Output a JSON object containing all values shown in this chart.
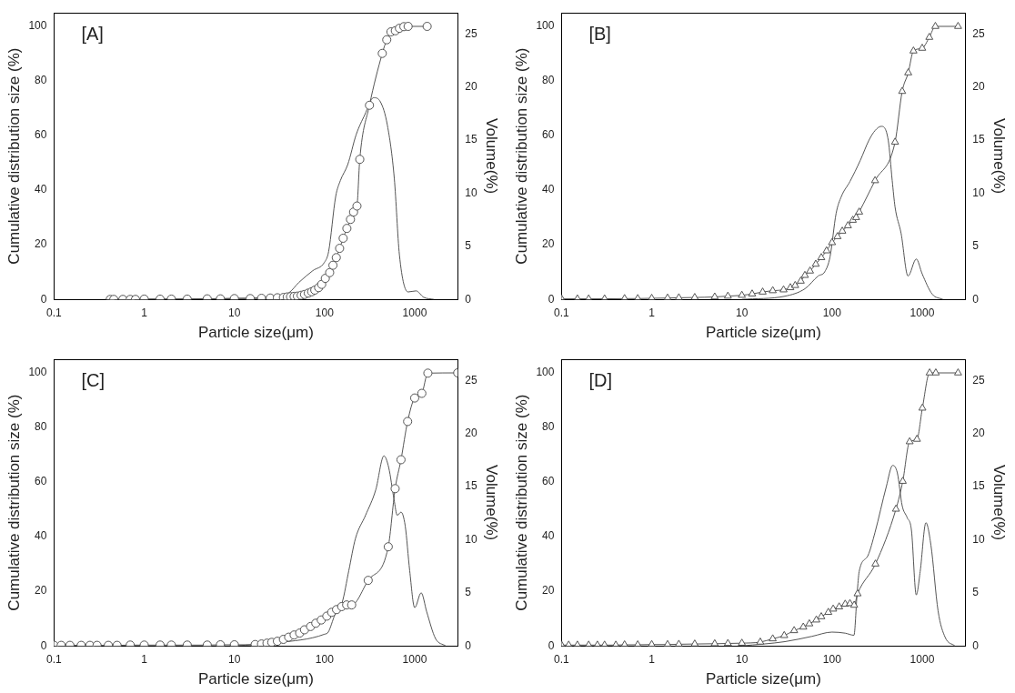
{
  "chart_data": [
    {
      "type": "line",
      "xlabel": "Particle size(μm)",
      "ylabel": "Cumulative distribution size (%)",
      "y2label": "Volume(%)",
      "annotations": [
        "[A]"
      ],
      "log": "x",
      "grid": false,
      "legend": false,
      "xlim": [
        0.1,
        3000
      ],
      "xticks": [
        0.1,
        1,
        10,
        100,
        1000
      ],
      "ylim": [
        0,
        105
      ],
      "yticks": [
        0,
        20,
        40,
        60,
        80,
        100
      ],
      "y2lim": [
        0,
        27
      ],
      "y2ticks": [
        0,
        5,
        10,
        15,
        20,
        25
      ],
      "series": [
        {
          "type": "line",
          "marker": "circle",
          "color": "#555555",
          "x": [
            0.42,
            0.46,
            0.58,
            0.7,
            0.8,
            1,
            1.5,
            2,
            3,
            5,
            7,
            10,
            15,
            20,
            25,
            30,
            35,
            38.6,
            42,
            46,
            50,
            55,
            60,
            66,
            72,
            78,
            86,
            93,
            102,
            114,
            124,
            135,
            147,
            161,
            177,
            194,
            210,
            229,
            246,
            315,
            437,
            490,
            545,
            610,
            677,
            759,
            845,
            1374
          ],
          "values": [
            0,
            0,
            0,
            0,
            0,
            0.1,
            0.1,
            0.1,
            0.1,
            0.2,
            0.2,
            0.3,
            0.3,
            0.4,
            0.5,
            0.6,
            0.7,
            0.9,
            1,
            1.1,
            1.2,
            1.5,
            1.8,
            2.3,
            2.8,
            3.4,
            4.3,
            5.5,
            7.7,
            9.8,
            12.5,
            15.3,
            18.7,
            22.4,
            26,
            29.3,
            32,
            34.2,
            51.3,
            71.1,
            90.1,
            95.1,
            98,
            98.4,
            99.3,
            99.9,
            100,
            100
          ]
        },
        {
          "type": "line",
          "axis": "y2",
          "marker": "none",
          "color": "#555555",
          "x": [
            0.42,
            10,
            30,
            40,
            52,
            74,
            100,
            111,
            133,
            150,
            181,
            224,
            280,
            350,
            417,
            498,
            594,
            677,
            845,
            1035,
            1258,
            1630
          ],
          "values": [
            0,
            0.1,
            0.3,
            0.6,
            1.6,
            2.7,
            3.5,
            4.5,
            9.7,
            11.2,
            12.7,
            15.5,
            17.4,
            19,
            18.6,
            16.4,
            11.4,
            4.2,
            0.7,
            0.8,
            0.2,
            0
          ]
        }
      ]
    },
    {
      "type": "line",
      "xlabel": "Particle size(μm)",
      "ylabel": "Cumulative distribution size (%)",
      "y2label": "Volume(%)",
      "annotations": [
        "[B]"
      ],
      "log": "x",
      "grid": false,
      "legend": false,
      "xlim": [
        0.1,
        3000
      ],
      "xticks": [
        0.1,
        1,
        10,
        100,
        1000
      ],
      "ylim": [
        0,
        105
      ],
      "yticks": [
        0,
        20,
        40,
        60,
        80,
        100
      ],
      "y2lim": [
        0,
        27
      ],
      "y2ticks": [
        0,
        5,
        10,
        15,
        20,
        25
      ],
      "series": [
        {
          "type": "line",
          "marker": "triangle",
          "color": "#555555",
          "x": [
            0.1,
            0.15,
            0.2,
            0.3,
            0.5,
            0.7,
            1,
            1.5,
            2,
            3,
            5,
            7,
            10,
            13,
            17,
            22,
            29,
            34.5,
            39,
            45,
            50,
            57,
            66,
            76,
            87,
            100,
            115,
            130,
            150,
            170,
            185,
            200,
            300,
            500,
            600,
            700,
            800,
            1000,
            1200,
            1400,
            2500
          ],
          "values": [
            0.2,
            0.2,
            0.2,
            0.2,
            0.3,
            0.3,
            0.4,
            0.5,
            0.6,
            0.7,
            0.9,
            1.2,
            1.5,
            2,
            2.7,
            3.2,
            3.5,
            4.3,
            5.1,
            6.7,
            8.8,
            10.4,
            12.9,
            15.3,
            17.8,
            20.8,
            23,
            25,
            27,
            29,
            30,
            32,
            43.5,
            57.6,
            76.2,
            83,
            91,
            92,
            96,
            100,
            100
          ]
        },
        {
          "type": "line",
          "axis": "y2",
          "marker": "none",
          "color": "#555555",
          "x": [
            10,
            30,
            50,
            70,
            83,
            95,
            111,
            127,
            158,
            206,
            257,
            300,
            352,
            420,
            465,
            500,
            584,
            696,
            860,
            1000,
            1290,
            1700
          ],
          "values": [
            0,
            0.3,
            1,
            2.2,
            2.6,
            4,
            8.1,
            9.7,
            11.1,
            13.1,
            15,
            15.9,
            16.3,
            15,
            11.2,
            8.7,
            6.2,
            2.2,
            3.8,
            2.4,
            0.5,
            0
          ]
        }
      ]
    },
    {
      "type": "line",
      "xlabel": "Particle size(μm)",
      "ylabel": "Cumulative distribution size (%)",
      "y2label": "Volume(%)",
      "annotations": [
        "[C]"
      ],
      "log": "x",
      "grid": false,
      "legend": false,
      "xlim": [
        0.1,
        3000
      ],
      "xticks": [
        0.1,
        1,
        10,
        100,
        1000
      ],
      "ylim": [
        0,
        105
      ],
      "yticks": [
        0,
        20,
        40,
        60,
        80,
        100
      ],
      "y2lim": [
        0,
        27
      ],
      "y2ticks": [
        0,
        5,
        10,
        15,
        20,
        25
      ],
      "series": [
        {
          "type": "line",
          "marker": "circle",
          "color": "#555555",
          "x": [
            0.1,
            0.12,
            0.15,
            0.2,
            0.25,
            0.3,
            0.4,
            0.5,
            0.7,
            1,
            1.5,
            2,
            3,
            5,
            7,
            10,
            17,
            20,
            23,
            26,
            30,
            35,
            40,
            46,
            53,
            60,
            70,
            80,
            92,
            106,
            120,
            136,
            155,
            176,
            200,
            305,
            509,
            607,
            705,
            835,
            1000,
            1200,
            1400,
            3000
          ],
          "values": [
            0.2,
            0.2,
            0.2,
            0.2,
            0.2,
            0.2,
            0.2,
            0.2,
            0.3,
            0.3,
            0.3,
            0.3,
            0.3,
            0.3,
            0.4,
            0.4,
            0.5,
            0.7,
            1,
            1.3,
            1.7,
            2.4,
            3.2,
            4,
            4.7,
            5.9,
            7.1,
            8.3,
            9.5,
            10.9,
            12.3,
            13.3,
            14.4,
            15,
            15,
            24,
            36.3,
            57.6,
            68.2,
            82.2,
            90.8,
            92.5,
            99.9,
            100
          ]
        },
        {
          "type": "line",
          "axis": "y2",
          "marker": "none",
          "color": "#555555",
          "x": [
            10,
            30,
            100,
            110,
            130,
            157,
            186,
            220,
            285,
            370,
            456,
            515,
            590,
            640,
            705,
            785,
            880,
            1000,
            1180,
            1360,
            1700,
            2200
          ],
          "values": [
            0,
            0.3,
            1.1,
            1.3,
            2.9,
            4.1,
            7.1,
            10.1,
            12.3,
            14.7,
            17.9,
            16.8,
            13.8,
            12.3,
            12.6,
            11.3,
            7.1,
            3.6,
            5,
            3.2,
            0.7,
            0
          ]
        }
      ]
    },
    {
      "type": "line",
      "xlabel": "Particle size(μm)",
      "ylabel": "Cumulative distribution size (%)",
      "y2label": "Volume(%)",
      "annotations": [
        "[D]"
      ],
      "log": "x",
      "grid": false,
      "legend": false,
      "xlim": [
        0.1,
        3000
      ],
      "xticks": [
        0.1,
        1,
        10,
        100,
        1000
      ],
      "ylim": [
        0,
        105
      ],
      "yticks": [
        0,
        20,
        40,
        60,
        80,
        100
      ],
      "y2lim": [
        0,
        27
      ],
      "y2ticks": [
        0,
        5,
        10,
        15,
        20,
        25
      ],
      "series": [
        {
          "type": "line",
          "marker": "triangle",
          "color": "#555555",
          "x": [
            0.1,
            0.12,
            0.15,
            0.2,
            0.25,
            0.3,
            0.4,
            0.5,
            0.7,
            1,
            1.5,
            2,
            3,
            5,
            7,
            10,
            16,
            22,
            29.5,
            38,
            48,
            56,
            67,
            76,
            91,
            103,
            120,
            140,
            158,
            176,
            192,
            303,
            512,
            609,
            726,
            875,
            1005,
            1210,
            1415,
            2500
          ],
          "values": [
            0.3,
            0.3,
            0.3,
            0.3,
            0.3,
            0.3,
            0.3,
            0.4,
            0.4,
            0.5,
            0.5,
            0.6,
            0.7,
            0.8,
            0.9,
            1,
            1.4,
            2.6,
            3.8,
            5.6,
            6.9,
            8.1,
            9.5,
            10.7,
            12.3,
            13.5,
            14.3,
            15.3,
            15.5,
            14.9,
            19.1,
            30,
            50.1,
            60.3,
            74.8,
            75.7,
            87.1,
            100,
            100,
            100
          ]
        },
        {
          "type": "line",
          "axis": "y2",
          "marker": "none",
          "color": "#555555",
          "x": [
            10,
            30,
            60,
            100,
            140,
            175,
            190,
            200,
            250,
            300,
            400,
            470,
            530,
            600,
            680,
            760,
            860,
            950,
            1100,
            1250,
            1500,
            1800,
            2300
          ],
          "values": [
            0,
            0.4,
            0.9,
            1.3,
            1.2,
            1,
            5,
            7,
            8.5,
            10.7,
            15,
            17,
            16.3,
            13.2,
            12.1,
            10.9,
            4.8,
            7,
            11.6,
            9.5,
            3.3,
            0.8,
            0
          ]
        }
      ]
    }
  ]
}
